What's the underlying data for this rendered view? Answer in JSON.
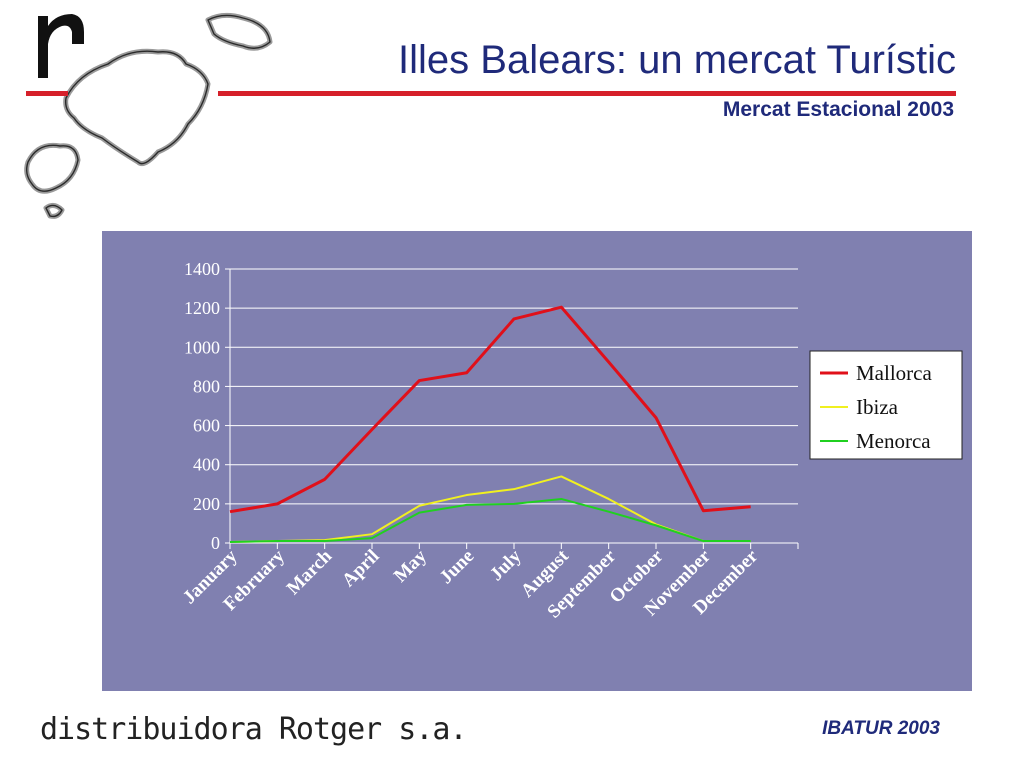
{
  "header": {
    "title": "Illes Balears: un mercat Turístic",
    "subtitle": "Mercat Estacional 2003"
  },
  "footer": {
    "company": "distribuidora Rotger s.a.",
    "source": "IBATUR 2003"
  },
  "colors": {
    "accent": "#d6202a",
    "title": "#1f2a7a",
    "plot_background": "#8080b0",
    "mallorca": "#e0101a",
    "ibiza": "#f0f020",
    "menorca": "#20d020"
  },
  "chart_data": {
    "type": "line",
    "title": "",
    "xlabel": "",
    "ylabel": "",
    "ylim": [
      0,
      1400
    ],
    "yticks": [
      0,
      200,
      400,
      600,
      800,
      1000,
      1200,
      1400
    ],
    "grid": true,
    "legend": "right",
    "categories": [
      "January",
      "February",
      "March",
      "April",
      "May",
      "June",
      "July",
      "August",
      "September",
      "October",
      "November",
      "December"
    ],
    "series": [
      {
        "name": "Mallorca",
        "color": "#e0101a",
        "values": [
          160,
          200,
          325,
          580,
          830,
          870,
          1145,
          1205,
          925,
          640,
          165,
          185
        ]
      },
      {
        "name": "Ibiza",
        "color": "#f0f020",
        "values": [
          5,
          10,
          15,
          45,
          190,
          245,
          275,
          340,
          225,
          95,
          10,
          10
        ]
      },
      {
        "name": "Menorca",
        "color": "#20d020",
        "values": [
          5,
          10,
          10,
          25,
          155,
          195,
          200,
          225,
          160,
          90,
          10,
          10
        ]
      }
    ]
  }
}
